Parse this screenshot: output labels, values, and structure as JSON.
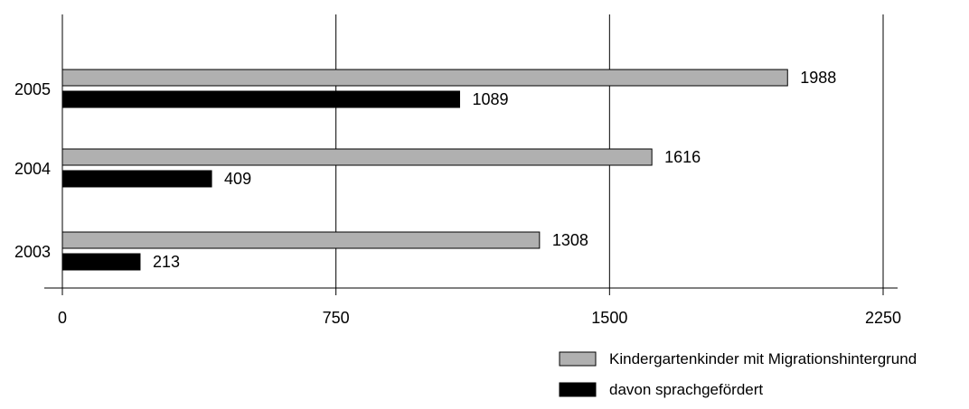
{
  "chart_data": {
    "type": "bar",
    "orientation": "horizontal",
    "categories": [
      "2005",
      "2004",
      "2003"
    ],
    "series": [
      {
        "name": "Kindergartenkinder mit Migrationshintergrund",
        "values": [
          1988,
          1616,
          1308
        ],
        "color": "#b0b0b0"
      },
      {
        "name": "davon sprachgefördert",
        "values": [
          1089,
          409,
          213
        ],
        "color": "#000000"
      }
    ],
    "xlim": [
      0,
      2250
    ],
    "xticks": [
      0,
      750,
      1500,
      2250
    ],
    "grid": "vertical",
    "legend_position": "bottom-right"
  }
}
